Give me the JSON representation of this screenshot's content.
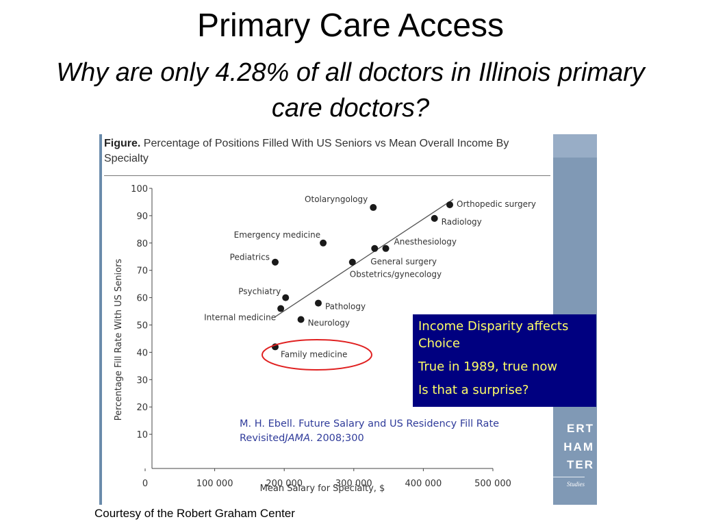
{
  "slide": {
    "title": "Primary Care Access",
    "subtitle": "Why are only 4.28% of all doctors in Illinois primary care doctors?",
    "credit": "Courtesy of the Robert Graham Center"
  },
  "figure": {
    "label": "Figure.",
    "caption": "Percentage of Positions Filled With US Seniors vs Mean Overall Income By Specialty"
  },
  "callout": {
    "line1": "Income Disparity affects",
    "line2": "Choice",
    "line3": "True in 1989, true now",
    "line4": "Is that a surprise?"
  },
  "citation": {
    "text_before": "M. H. Ebell. Future Salary and US Residency Fill Rate Revisited",
    "journal": "JAMA",
    "text_after": ". 2008;300"
  },
  "branding": {
    "lines": [
      "ERT",
      "HAM",
      "TER"
    ],
    "tagline": "Studies"
  },
  "colors": {
    "callout_bg": "#000080",
    "callout_text": "#ffff66",
    "citation_text": "#2f3b9a",
    "highlight_ellipse": "#e02020",
    "brand_strip": "#8099b5"
  },
  "chart_data": {
    "type": "scatter",
    "xlabel": "Mean Salary for Specialty, $",
    "ylabel": "Percentage Fill Rate With US Seniors",
    "xlim": [
      0,
      500000
    ],
    "ylim": [
      0,
      100
    ],
    "x_ticks": [
      0,
      100000,
      200000,
      300000,
      400000,
      500000
    ],
    "x_tick_labels": [
      "0",
      "100 000",
      "200 000",
      "300 000",
      "400 000",
      "500 000"
    ],
    "y_ticks": [
      10,
      20,
      30,
      40,
      50,
      60,
      70,
      80,
      90,
      100
    ],
    "y_tick_labels": [
      "10",
      "20",
      "30",
      "40",
      "50",
      "60",
      "70",
      "80",
      "90",
      "100"
    ],
    "points": [
      {
        "name": "Otolaryngology",
        "x": 328000,
        "y": 93
      },
      {
        "name": "Orthopedic surgery",
        "x": 438000,
        "y": 94
      },
      {
        "name": "Radiology",
        "x": 416000,
        "y": 89
      },
      {
        "name": "Emergency medicine",
        "x": 256000,
        "y": 80
      },
      {
        "name": "Anesthesiology",
        "x": 346000,
        "y": 78
      },
      {
        "name": "General surgery",
        "x": 330000,
        "y": 78
      },
      {
        "name": "Pediatrics",
        "x": 187000,
        "y": 73
      },
      {
        "name": "Obstetrics/gynecology",
        "x": 298000,
        "y": 73
      },
      {
        "name": "Psychiatry",
        "x": 202000,
        "y": 60
      },
      {
        "name": "Pathology",
        "x": 249000,
        "y": 58
      },
      {
        "name": "Internal medicine",
        "x": 195000,
        "y": 56
      },
      {
        "name": "Neurology",
        "x": 224000,
        "y": 52
      },
      {
        "name": "Family medicine",
        "x": 187000,
        "y": 42
      }
    ],
    "trend_line": {
      "x": [
        187000,
        443000
      ],
      "y": [
        53,
        96
      ]
    },
    "highlight": "Family medicine"
  }
}
